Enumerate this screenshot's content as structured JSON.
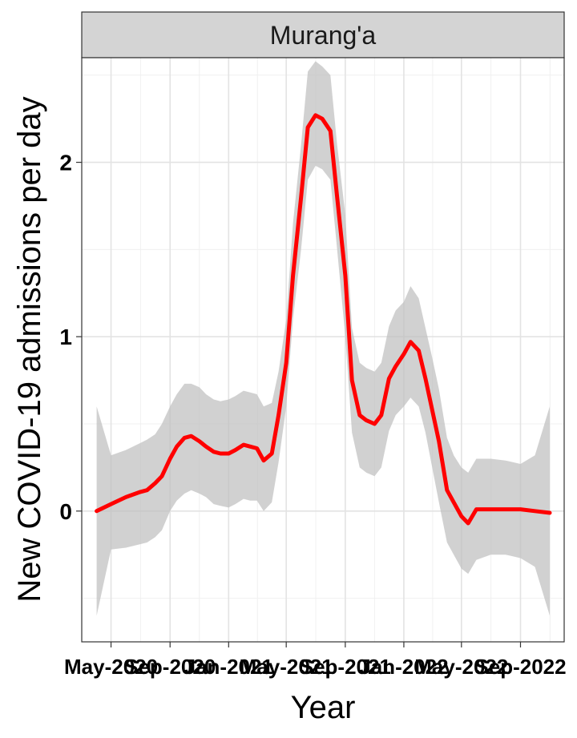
{
  "chart_data": {
    "type": "line",
    "facet_label": "Murang'a",
    "xlabel": "Year",
    "ylabel": "New COVID-19 admissions per day",
    "line_color": "#ff0000",
    "ribbon_color": "#bdbdbd",
    "grid": true,
    "x_tick_labels": [
      "May-2020",
      "Sep-2020",
      "Jan-2021",
      "May-2021",
      "Sep-2021",
      "Jan-2022",
      "May-2022",
      "Sep-2022"
    ],
    "xlim": [
      "2020-03-01",
      "2022-12-01"
    ],
    "ylim": [
      -0.75,
      2.6
    ],
    "y_ticks": [
      0,
      1,
      2
    ],
    "x": [
      "2020-04-01",
      "2020-05-01",
      "2020-06-01",
      "2020-07-01",
      "2020-07-15",
      "2020-08-01",
      "2020-08-15",
      "2020-09-01",
      "2020-09-15",
      "2020-10-01",
      "2020-10-15",
      "2020-11-01",
      "2020-11-15",
      "2020-12-01",
      "2020-12-15",
      "2021-01-01",
      "2021-01-15",
      "2021-02-01",
      "2021-02-15",
      "2021-03-01",
      "2021-03-15",
      "2021-04-01",
      "2021-04-15",
      "2021-05-01",
      "2021-05-15",
      "2021-06-01",
      "2021-06-15",
      "2021-07-01",
      "2021-07-15",
      "2021-08-01",
      "2021-08-15",
      "2021-09-01",
      "2021-09-15",
      "2021-10-01",
      "2021-10-15",
      "2021-11-01",
      "2021-11-15",
      "2021-12-01",
      "2021-12-15",
      "2022-01-01",
      "2022-01-15",
      "2022-02-01",
      "2022-02-15",
      "2022-03-01",
      "2022-03-15",
      "2022-04-01",
      "2022-04-15",
      "2022-05-01",
      "2022-05-15",
      "2022-06-01",
      "2022-07-01",
      "2022-08-01",
      "2022-09-01",
      "2022-10-01",
      "2022-11-01"
    ],
    "series": [
      {
        "values": [
          0.0,
          0.04,
          0.08,
          0.11,
          0.12,
          0.16,
          0.2,
          0.3,
          0.37,
          0.42,
          0.43,
          0.4,
          0.37,
          0.34,
          0.33,
          0.33,
          0.35,
          0.38,
          0.37,
          0.36,
          0.29,
          0.33,
          0.55,
          0.85,
          1.35,
          1.8,
          2.2,
          2.27,
          2.25,
          2.18,
          1.8,
          1.35,
          0.75,
          0.55,
          0.52,
          0.5,
          0.55,
          0.76,
          0.83,
          0.9,
          0.97,
          0.92,
          0.76,
          0.58,
          0.4,
          0.12,
          0.05,
          -0.03,
          -0.07,
          0.01,
          0.01,
          0.01,
          0.01,
          0.0,
          -0.01
        ],
        "lower": [
          -0.6,
          -0.22,
          -0.21,
          -0.19,
          -0.18,
          -0.15,
          -0.11,
          0.0,
          0.06,
          0.1,
          0.12,
          0.1,
          0.08,
          0.04,
          0.03,
          0.02,
          0.04,
          0.07,
          0.06,
          0.06,
          0.0,
          0.05,
          0.28,
          0.6,
          1.1,
          1.5,
          1.9,
          1.98,
          1.96,
          1.9,
          1.5,
          1.0,
          0.45,
          0.25,
          0.22,
          0.2,
          0.25,
          0.46,
          0.55,
          0.6,
          0.65,
          0.6,
          0.45,
          0.25,
          0.05,
          -0.18,
          -0.25,
          -0.33,
          -0.36,
          -0.28,
          -0.25,
          -0.25,
          -0.27,
          -0.32,
          -0.6
        ],
        "upper": [
          0.6,
          0.32,
          0.35,
          0.39,
          0.41,
          0.44,
          0.5,
          0.6,
          0.67,
          0.73,
          0.73,
          0.71,
          0.67,
          0.64,
          0.63,
          0.64,
          0.66,
          0.69,
          0.68,
          0.67,
          0.6,
          0.62,
          0.8,
          1.1,
          1.65,
          2.1,
          2.52,
          2.58,
          2.55,
          2.5,
          2.1,
          1.7,
          1.05,
          0.85,
          0.82,
          0.8,
          0.85,
          1.06,
          1.15,
          1.2,
          1.29,
          1.22,
          1.05,
          0.88,
          0.7,
          0.42,
          0.32,
          0.25,
          0.22,
          0.3,
          0.3,
          0.29,
          0.27,
          0.32,
          0.6
        ]
      }
    ]
  }
}
